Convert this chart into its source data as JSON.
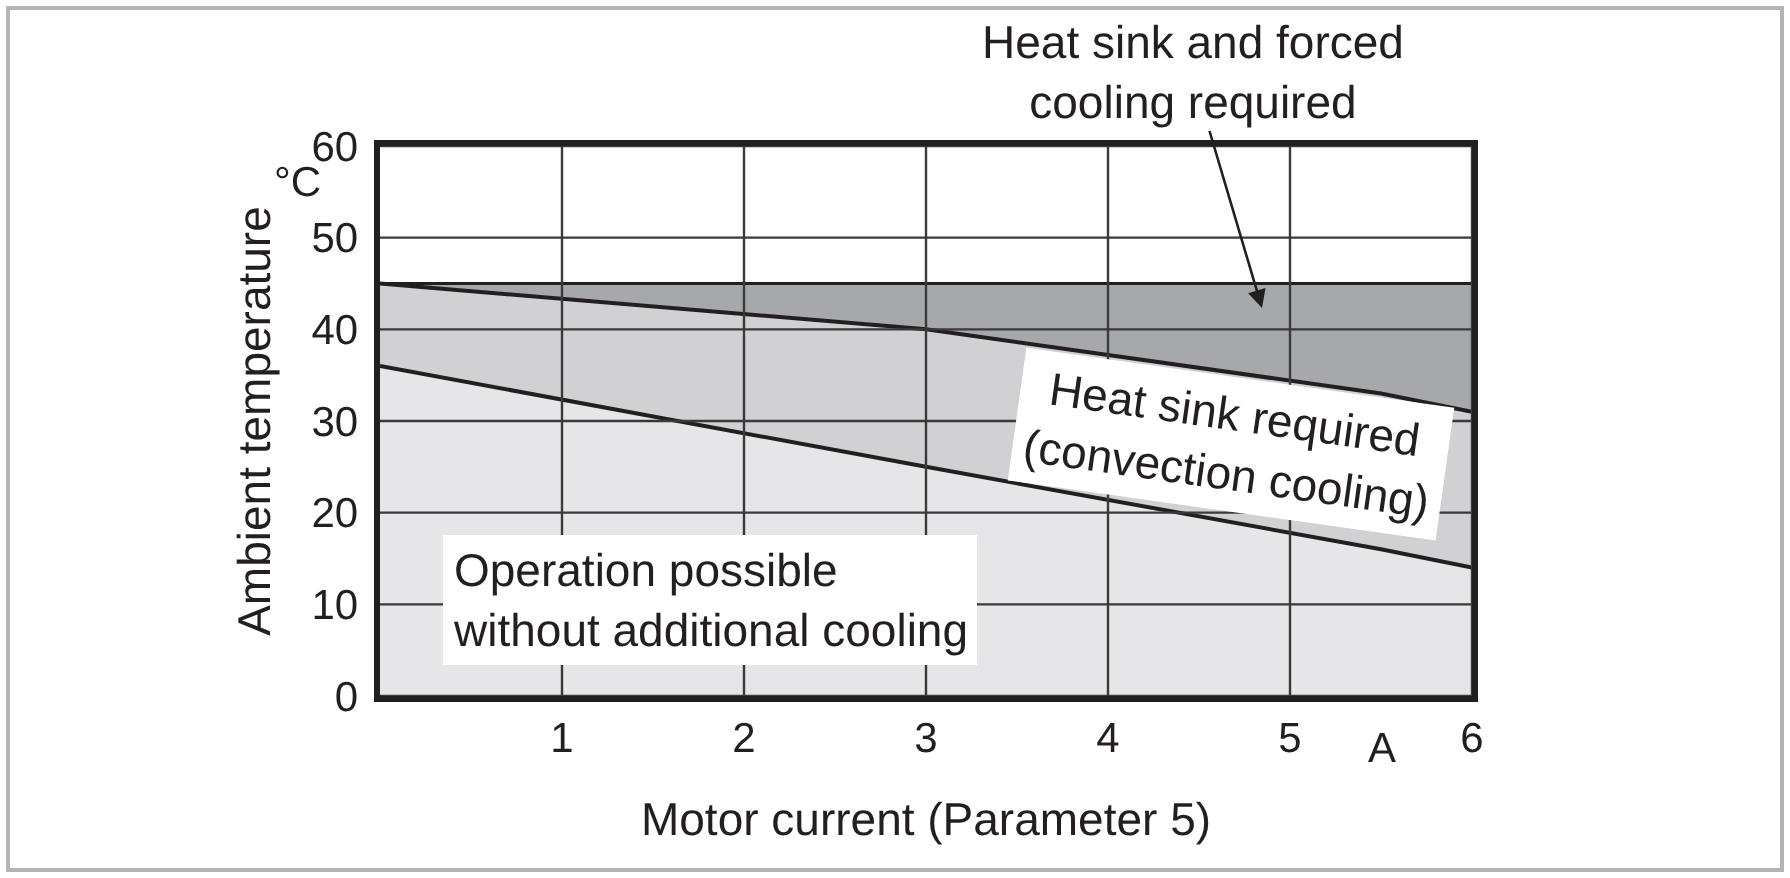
{
  "chart_data": {
    "type": "area",
    "stacked": true,
    "xlabel": "Motor current (Parameter 5)",
    "ylabel": "Ambient temperature",
    "xlim": [
      0,
      6
    ],
    "ylim": [
      0,
      60
    ],
    "xticks": [
      1,
      2,
      3,
      4,
      5,
      6
    ],
    "yticks": [
      0,
      10,
      20,
      30,
      40,
      50,
      60
    ],
    "grid": true,
    "x": [
      0,
      3,
      5.5,
      6
    ],
    "series": [
      {
        "color": "#e6e6e8",
        "values": [
          36,
          25,
          16,
          14
        ]
      },
      {
        "color": "#d1d1d3",
        "values": [
          9,
          15,
          17,
          17
        ]
      },
      {
        "color": "#a7a8ab",
        "values": [
          0,
          5,
          12,
          14
        ]
      }
    ],
    "annotations": [
      "Heat sink and forced\ncooling required",
      "Heat sink required\n(convection cooling)",
      "Operation possible\nwithout additional cooling",
      "°C",
      "A"
    ]
  }
}
